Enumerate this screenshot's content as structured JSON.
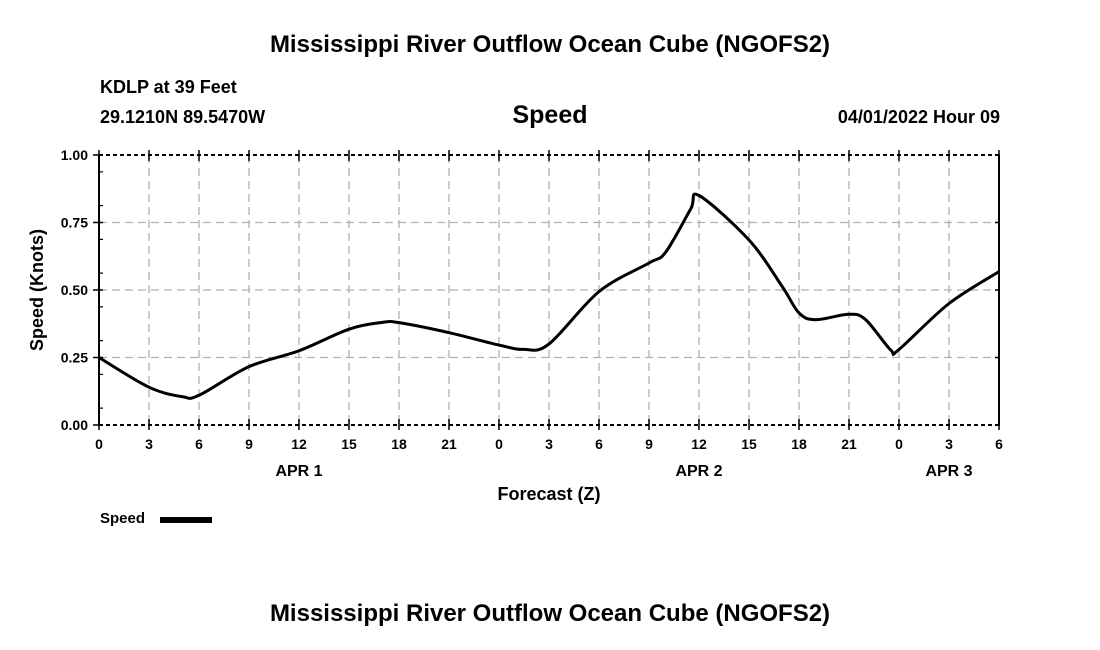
{
  "header": {
    "title": "Mississippi River Outflow Ocean Cube (NGOFS2)",
    "station": "KDLP at 39 Feet",
    "coords": "29.1210N  89.5470W",
    "variable": "Speed",
    "datetime": "04/01/2022 Hour 09"
  },
  "legend": {
    "label": "Speed",
    "color": "#000000"
  },
  "footer": {
    "title": "Mississippi River Outflow Ocean Cube (NGOFS2)"
  },
  "chart_data": {
    "type": "line",
    "title": "Speed",
    "xlabel": "Forecast (Z)",
    "ylabel": "Speed (Knots)",
    "xlim": [
      0,
      54
    ],
    "ylim": [
      0,
      1
    ],
    "grid": true,
    "legend_position": "bottom-left",
    "x_ticks": [
      0,
      3,
      6,
      9,
      12,
      15,
      18,
      21,
      24,
      27,
      30,
      33,
      36,
      39,
      42,
      45,
      48,
      51,
      54
    ],
    "x_tick_labels": [
      "0",
      "3",
      "6",
      "9",
      "12",
      "15",
      "18",
      "21",
      "0",
      "3",
      "6",
      "9",
      "12",
      "15",
      "18",
      "21",
      "0",
      "3",
      "6"
    ],
    "date_labels": [
      {
        "hour": 12,
        "label": "APR 1"
      },
      {
        "hour": 36,
        "label": "APR 2"
      },
      {
        "hour": 51,
        "label": "APR 3"
      }
    ],
    "y_ticks": [
      0,
      0.25,
      0.5,
      0.75,
      1.0
    ],
    "y_tick_labels": [
      "0.00",
      "0.25",
      "0.50",
      "0.75",
      "1.00"
    ],
    "series": [
      {
        "name": "Speed",
        "color": "#000000",
        "x": [
          0,
          3,
          5,
          6,
          9,
          12,
          15,
          17,
          18,
          21,
          24,
          25.5,
          27,
          30,
          33,
          34,
          35.5,
          36,
          39,
          41,
          42,
          43,
          45,
          46,
          47.5,
          48,
          51,
          54
        ],
        "y": [
          0.25,
          0.14,
          0.105,
          0.11,
          0.216,
          0.275,
          0.355,
          0.38,
          0.379,
          0.342,
          0.296,
          0.28,
          0.3,
          0.494,
          0.6,
          0.64,
          0.8,
          0.85,
          0.685,
          0.512,
          0.415,
          0.39,
          0.41,
          0.39,
          0.278,
          0.28,
          0.45,
          0.568
        ]
      }
    ]
  }
}
